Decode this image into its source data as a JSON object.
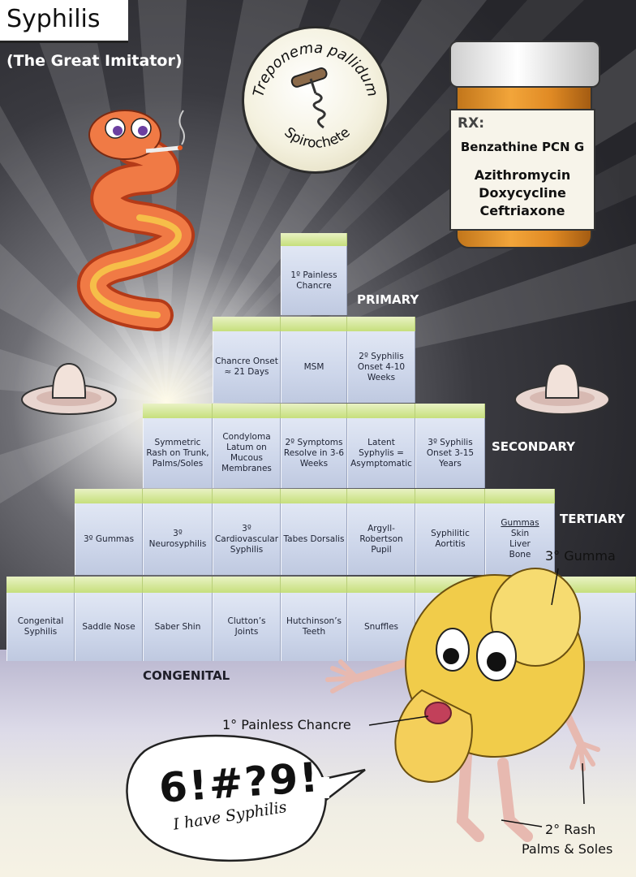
{
  "header": {
    "title": "Syphilis",
    "subtitle": "(The Great Imitator)"
  },
  "organism": {
    "name": "Treponema pallidum",
    "type": "Spirochete",
    "icon": "corkscrew-icon"
  },
  "treatment": {
    "rx_label": "RX:",
    "medications": [
      "Benzathine PCN G",
      "Azithromycin",
      "Doxycycline",
      "Ceftriaxone"
    ]
  },
  "stages": {
    "primary": {
      "label": "PRIMARY",
      "rows": [
        [
          "1º Painless Chancre"
        ],
        [
          "Chancre Onset ≈ 21 Days",
          "MSM",
          "2º Syphilis Onset 4-10 Weeks"
        ]
      ]
    },
    "secondary": {
      "label": "SECONDARY",
      "cells": [
        "Symmetric Rash on Trunk, Palms/Soles",
        "Condyloma Latum on Mucous Membranes",
        "2º Symptoms Resolve in 3-6 Weeks",
        "Latent Syphylis = Asymptomatic",
        "3º Syphilis Onset 3-15 Years"
      ]
    },
    "tertiary": {
      "label": "TERTIARY",
      "cells": [
        "3º Gummas",
        "3º Neurosyphilis",
        "3º Cardiovascular Syphilis",
        "Tabes Dorsalis",
        "Argyll-Robertson Pupil",
        "Syphilitic Aortitis"
      ],
      "gummas_cell": {
        "heading": "Gummas",
        "lines": [
          "Skin",
          "Liver",
          "Bone"
        ]
      }
    },
    "congenital": {
      "label": "CONGENITAL",
      "cells": [
        "Congenital Syphilis",
        "Saddle Nose",
        "Saber Shin",
        "Clutton’s Joints",
        "Hutchinson’s Teeth",
        "Snuffles"
      ]
    }
  },
  "annotations": {
    "gumma": "3° Gumma",
    "chancre": "1° Painless Chancre",
    "rash_line1": "2° Rash",
    "rash_line2": "Palms & Soles"
  },
  "speech_bubble": {
    "exclamation": "6!#?9!",
    "text": "I have Syphilis"
  },
  "colors": {
    "block_face": "#cdd6ea",
    "block_top": "#c6df7c",
    "bottle": "#f2a53a",
    "snake": "#ee6a3a",
    "creature": "#f1cc4a"
  }
}
